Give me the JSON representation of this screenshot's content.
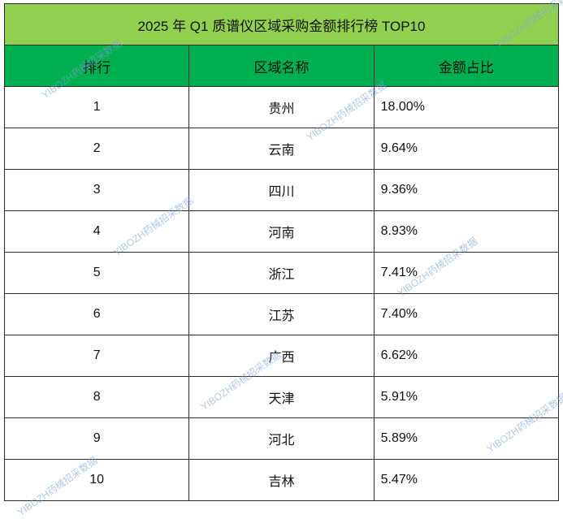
{
  "title": "2025 年 Q1 质谱仪区域采购金额排行榜 TOP10",
  "headers": {
    "rank": "排行",
    "region": "区域名称",
    "share": "金额占比"
  },
  "rows": [
    {
      "rank": "1",
      "region": "贵州",
      "share": "18.00%"
    },
    {
      "rank": "2",
      "region": "云南",
      "share": "9.64%"
    },
    {
      "rank": "3",
      "region": "四川",
      "share": "9.36%"
    },
    {
      "rank": "4",
      "region": "河南",
      "share": "8.93%"
    },
    {
      "rank": "5",
      "region": "浙江",
      "share": "7.41%"
    },
    {
      "rank": "6",
      "region": "江苏",
      "share": "7.40%"
    },
    {
      "rank": "7",
      "region": "广西",
      "share": "6.62%"
    },
    {
      "rank": "8",
      "region": "天津",
      "share": "5.91%"
    },
    {
      "rank": "9",
      "region": "河北",
      "share": "5.89%"
    },
    {
      "rank": "10",
      "region": "吉林",
      "share": "5.47%"
    }
  ],
  "watermark": "YIBOZH药械招采数据",
  "colors": {
    "title_bg": "#92d050",
    "header_bg": "#00b050",
    "border": "#2b2b2b"
  }
}
